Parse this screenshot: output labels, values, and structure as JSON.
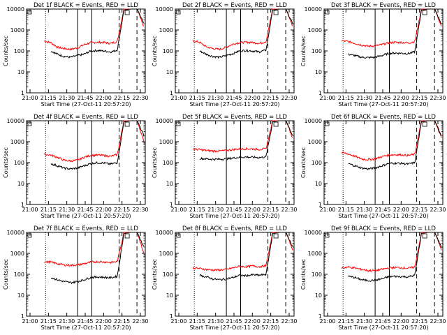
{
  "chart_data": [
    {
      "type": "line",
      "title": "Det 1f BLACK = Events, RED = LLD",
      "xlabel": "Start Time (27-Oct-11 20:57:20)",
      "ylabel": "Counts/sec",
      "y_scale": "log",
      "ylim": [
        1,
        10000
      ],
      "x_tick_labels": [
        "21:00",
        "21:15",
        "21:30",
        "21:45",
        "22:00",
        "22:15",
        "22:30"
      ],
      "y_tick_labels": [
        "1",
        "10",
        "100",
        "1000",
        "10000"
      ],
      "series": [
        {
          "color": "#ff0000",
          "values": [
            300,
            250,
            150,
            130,
            120,
            140,
            200,
            250,
            260,
            255,
            230,
            280,
            10000,
            10000,
            10000,
            1500
          ]
        },
        {
          "color": "#000000",
          "values": [
            null,
            100,
            70,
            55,
            50,
            60,
            70,
            100,
            105,
            100,
            90,
            110,
            9000,
            10000,
            10000,
            2000
          ]
        }
      ]
    },
    {
      "type": "line",
      "title": "Det 2f BLACK = Events, RED = LLD",
      "xlabel": "Start Time (27-Oct-11 20:57:20)",
      "ylabel": "Counts/sec",
      "y_scale": "log",
      "ylim": [
        1,
        10000
      ],
      "x_tick_labels": [
        "21:00",
        "21:15",
        "21:30",
        "21:45",
        "22:00",
        "22:15",
        "22:30"
      ],
      "y_tick_labels": [
        "1",
        "10",
        "100",
        "1000",
        "10000"
      ],
      "series": [
        {
          "color": "#ff0000",
          "values": [
            300,
            260,
            160,
            130,
            120,
            150,
            210,
            250,
            260,
            255,
            230,
            280,
            10000,
            10000,
            10000,
            1500
          ]
        },
        {
          "color": "#000000",
          "values": [
            null,
            100,
            70,
            55,
            50,
            60,
            75,
            100,
            105,
            100,
            90,
            110,
            9000,
            10000,
            10000,
            2000
          ]
        }
      ]
    },
    {
      "type": "line",
      "title": "Det 3f BLACK = Events, RED = LLD",
      "xlabel": "Start Time (27-Oct-11 20:57:20)",
      "ylabel": "Counts/sec",
      "y_scale": "log",
      "ylim": [
        1,
        10000
      ],
      "x_tick_labels": [
        "21:00",
        "21:15",
        "21:30",
        "21:45",
        "22:00",
        "22:15",
        "22:30"
      ],
      "y_tick_labels": [
        "1",
        "10",
        "100",
        "1000",
        "10000"
      ],
      "series": [
        {
          "color": "#ff0000",
          "values": [
            300,
            280,
            230,
            190,
            170,
            175,
            200,
            240,
            260,
            255,
            240,
            280,
            10000,
            10000,
            10000,
            1500
          ]
        },
        {
          "color": "#000000",
          "values": [
            null,
            70,
            60,
            50,
            48,
            50,
            60,
            75,
            80,
            78,
            75,
            90,
            9000,
            10000,
            10000,
            2000
          ]
        }
      ]
    },
    {
      "type": "line",
      "title": "Det 4f BLACK = Events, RED = LLD",
      "xlabel": "Start Time (27-Oct-11 20:57:20)",
      "ylabel": "Counts/sec",
      "y_scale": "log",
      "ylim": [
        1,
        10000
      ],
      "x_tick_labels": [
        "21:00",
        "21:15",
        "21:30",
        "21:45",
        "22:00",
        "22:15",
        "22:30"
      ],
      "y_tick_labels": [
        "1",
        "10",
        "100",
        "1000",
        "10000"
      ],
      "series": [
        {
          "color": "#ff0000",
          "values": [
            250,
            230,
            180,
            130,
            120,
            130,
            180,
            220,
            230,
            220,
            200,
            240,
            10000,
            10000,
            10000,
            1000
          ]
        },
        {
          "color": "#000000",
          "values": [
            null,
            90,
            70,
            55,
            50,
            55,
            70,
            90,
            100,
            95,
            85,
            100,
            9000,
            10000,
            10000,
            2000
          ]
        }
      ]
    },
    {
      "type": "line",
      "title": "Det 5f BLACK = Events, RED = LLD",
      "xlabel": "Start Time (27-Oct-11 20:57:20)",
      "ylabel": "Counts/sec",
      "y_scale": "log",
      "ylim": [
        1,
        10000
      ],
      "x_tick_labels": [
        "21:00",
        "21:15",
        "21:30",
        "21:45",
        "22:00",
        "22:15",
        "22:30"
      ],
      "y_tick_labels": [
        "1",
        "10",
        "100",
        "1000",
        "10000"
      ],
      "series": [
        {
          "color": "#ff0000",
          "values": [
            450,
            420,
            380,
            360,
            360,
            380,
            420,
            450,
            460,
            450,
            430,
            460,
            10000,
            10000,
            10000,
            1500
          ]
        },
        {
          "color": "#000000",
          "values": [
            null,
            160,
            150,
            145,
            145,
            150,
            165,
            180,
            185,
            180,
            175,
            190,
            9000,
            10000,
            10000,
            2000
          ]
        }
      ]
    },
    {
      "type": "line",
      "title": "Det 6f BLACK = Events, RED = LLD",
      "xlabel": "Start Time (27-Oct-11 20:57:20)",
      "ylabel": "Counts/sec",
      "y_scale": "log",
      "ylim": [
        1,
        10000
      ],
      "x_tick_labels": [
        "21:00",
        "21:15",
        "21:30",
        "21:45",
        "22:00",
        "22:15",
        "22:30"
      ],
      "y_tick_labels": [
        "1",
        "10",
        "100",
        "1000",
        "10000"
      ],
      "series": [
        {
          "color": "#ff0000",
          "values": [
            300,
            260,
            200,
            150,
            140,
            150,
            190,
            230,
            240,
            235,
            220,
            250,
            10000,
            10000,
            10000,
            1500
          ]
        },
        {
          "color": "#000000",
          "values": [
            null,
            90,
            70,
            55,
            50,
            55,
            70,
            90,
            95,
            92,
            85,
            100,
            9000,
            10000,
            10000,
            2000
          ]
        }
      ]
    },
    {
      "type": "line",
      "title": "Det 7f BLACK = Events, RED = LLD",
      "xlabel": "Start Time (27-Oct-11 20:57:20)",
      "ylabel": "Counts/sec",
      "y_scale": "log",
      "ylim": [
        1,
        10000
      ],
      "x_tick_labels": [
        "21:00",
        "21:15",
        "21:30",
        "21:45",
        "22:00",
        "22:15",
        "22:30"
      ],
      "y_tick_labels": [
        "1",
        "10",
        "100",
        "1000",
        "10000"
      ],
      "series": [
        {
          "color": "#ff0000",
          "values": [
            400,
            380,
            320,
            280,
            270,
            280,
            320,
            380,
            400,
            390,
            370,
            400,
            10000,
            10000,
            10000,
            1000
          ]
        },
        {
          "color": "#000000",
          "values": [
            null,
            70,
            55,
            45,
            40,
            45,
            55,
            70,
            75,
            72,
            68,
            80,
            9000,
            10000,
            10000,
            2000
          ]
        }
      ]
    },
    {
      "type": "line",
      "title": "Det 8f BLACK = Events, RED = LLD",
      "xlabel": "Start Time (27-Oct-11 20:57:20)",
      "ylabel": "Counts/sec",
      "y_scale": "log",
      "ylim": [
        1,
        10000
      ],
      "x_tick_labels": [
        "21:00",
        "21:15",
        "21:30",
        "21:45",
        "22:00",
        "22:15",
        "22:30"
      ],
      "y_tick_labels": [
        "1",
        "10",
        "100",
        "1000",
        "10000"
      ],
      "series": [
        {
          "color": "#ff0000",
          "values": [
            200,
            190,
            170,
            160,
            160,
            170,
            200,
            240,
            230,
            250,
            230,
            260,
            10000,
            10000,
            10000,
            1500
          ]
        },
        {
          "color": "#000000",
          "values": [
            null,
            90,
            75,
            60,
            55,
            60,
            70,
            90,
            85,
            95,
            90,
            100,
            9000,
            10000,
            10000,
            2000
          ]
        }
      ]
    },
    {
      "type": "line",
      "title": "Det 9f BLACK = Events, RED = LLD",
      "xlabel": "Start Time (27-Oct-11 20:57:20)",
      "ylabel": "Counts/sec",
      "y_scale": "log",
      "ylim": [
        1,
        10000
      ],
      "x_tick_labels": [
        "21:00",
        "21:15",
        "21:30",
        "21:45",
        "22:00",
        "22:15",
        "22:30"
      ],
      "y_tick_labels": [
        "1",
        "10",
        "100",
        "1000",
        "10000"
      ],
      "series": [
        {
          "color": "#ff0000",
          "values": [
            200,
            220,
            200,
            170,
            150,
            150,
            170,
            200,
            210,
            205,
            195,
            220,
            10000,
            10000,
            10000,
            1500
          ]
        },
        {
          "color": "#000000",
          "values": [
            null,
            80,
            70,
            55,
            50,
            52,
            60,
            75,
            80,
            78,
            75,
            90,
            9000,
            10000,
            10000,
            2000
          ]
        }
      ]
    }
  ]
}
